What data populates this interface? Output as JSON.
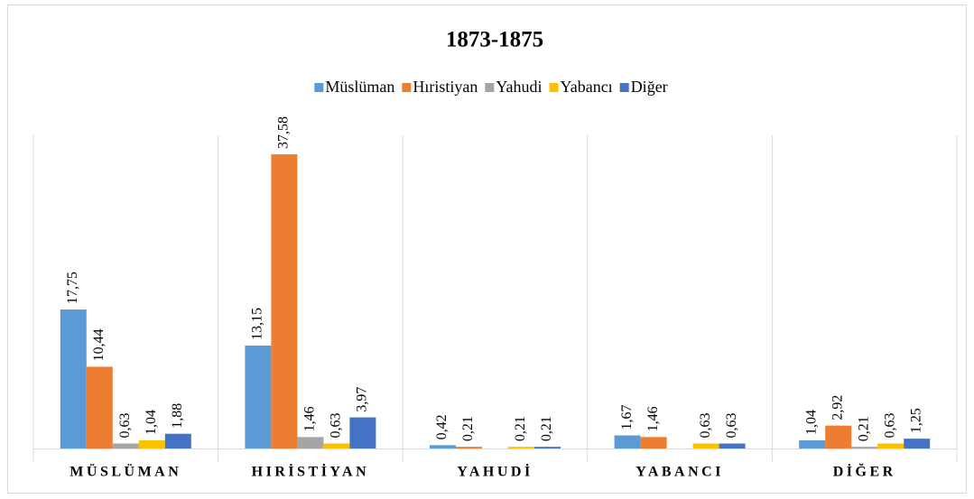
{
  "chart_data": {
    "type": "bar",
    "title": "1873-1875",
    "categories": [
      "MÜSLÜMAN",
      "HIRİSTİYAN",
      "YAHUDİ",
      "YABANCI",
      "DİĞER"
    ],
    "ylim": [
      0,
      40
    ],
    "legend": "top",
    "series": [
      {
        "name": "Müslüman",
        "color": "#5b9bd5",
        "values": [
          17.75,
          13.15,
          0.42,
          1.67,
          1.04
        ],
        "value_labels": [
          "17,75",
          "13,15",
          "0,42",
          "1,67",
          "1,04"
        ]
      },
      {
        "name": "Hıristiyan",
        "color": "#ed7d31",
        "values": [
          10.44,
          37.58,
          0.21,
          1.46,
          2.92
        ],
        "value_labels": [
          "10,44",
          "37,58",
          "0,21",
          "1,46",
          "2,92"
        ]
      },
      {
        "name": "Yahudi",
        "color": "#a5a5a5",
        "values": [
          0.63,
          1.46,
          null,
          null,
          0.21
        ],
        "value_labels": [
          "0,63",
          "1,46",
          null,
          null,
          "0,21"
        ]
      },
      {
        "name": "Yabancı",
        "color": "#ffc000",
        "values": [
          1.04,
          0.63,
          0.21,
          0.63,
          0.63
        ],
        "value_labels": [
          "1,04",
          "0,63",
          "0,21",
          "0,63",
          "0,63"
        ]
      },
      {
        "name": "Diğer",
        "color": "#4472c4",
        "values": [
          1.88,
          3.97,
          0.21,
          0.63,
          1.25
        ],
        "value_labels": [
          "1,88",
          "3,97",
          "0,21",
          "0,63",
          "1,25"
        ]
      }
    ]
  }
}
